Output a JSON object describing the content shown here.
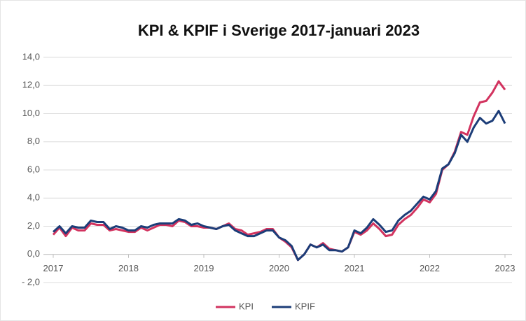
{
  "chart_data": {
    "type": "line",
    "title": "KPI & KPIF i Sverige 2017-januari 2023",
    "categories": [
      "2017",
      null,
      null,
      null,
      null,
      null,
      null,
      null,
      null,
      null,
      null,
      null,
      "2018",
      null,
      null,
      null,
      null,
      null,
      null,
      null,
      null,
      null,
      null,
      null,
      "2019",
      null,
      null,
      null,
      null,
      null,
      null,
      null,
      null,
      null,
      null,
      null,
      "2020",
      null,
      null,
      null,
      null,
      null,
      null,
      null,
      null,
      null,
      null,
      null,
      "2021",
      null,
      null,
      null,
      null,
      null,
      null,
      null,
      null,
      null,
      null,
      null,
      "2022",
      null,
      null,
      null,
      null,
      null,
      null,
      null,
      null,
      null,
      null,
      null,
      "2023"
    ],
    "series": [
      {
        "name": "KPI",
        "color": "#d2335f",
        "values": [
          1.4,
          1.9,
          1.3,
          1.9,
          1.7,
          1.7,
          2.2,
          2.1,
          2.1,
          1.7,
          1.8,
          1.7,
          1.6,
          1.6,
          1.9,
          1.7,
          1.9,
          2.1,
          2.1,
          2.0,
          2.4,
          2.3,
          2.0,
          2.0,
          1.9,
          1.9,
          1.8,
          2.0,
          2.2,
          1.8,
          1.7,
          1.4,
          1.5,
          1.6,
          1.8,
          1.8,
          1.2,
          0.9,
          0.5,
          -0.4,
          0.0,
          0.7,
          0.5,
          0.8,
          0.4,
          0.3,
          0.2,
          0.5,
          1.6,
          1.4,
          1.7,
          2.2,
          1.8,
          1.3,
          1.4,
          2.1,
          2.5,
          2.8,
          3.3,
          3.9,
          3.7,
          4.3,
          6.0,
          6.4,
          7.3,
          8.7,
          8.5,
          9.8,
          10.8,
          10.9,
          11.5,
          12.3,
          11.7
        ]
      },
      {
        "name": "KPIF",
        "color": "#1c3d78",
        "values": [
          1.6,
          2.0,
          1.5,
          2.0,
          1.9,
          1.9,
          2.4,
          2.3,
          2.3,
          1.8,
          2.0,
          1.9,
          1.7,
          1.7,
          2.0,
          1.9,
          2.1,
          2.2,
          2.2,
          2.2,
          2.5,
          2.4,
          2.1,
          2.2,
          2.0,
          1.9,
          1.8,
          2.0,
          2.1,
          1.7,
          1.5,
          1.3,
          1.3,
          1.5,
          1.7,
          1.7,
          1.2,
          1.0,
          0.6,
          -0.4,
          0.0,
          0.7,
          0.5,
          0.7,
          0.3,
          0.3,
          0.2,
          0.5,
          1.7,
          1.5,
          1.9,
          2.5,
          2.1,
          1.6,
          1.7,
          2.4,
          2.8,
          3.1,
          3.6,
          4.1,
          3.9,
          4.5,
          6.1,
          6.4,
          7.2,
          8.5,
          8.0,
          9.0,
          9.7,
          9.3,
          9.5,
          10.2,
          9.3
        ]
      }
    ],
    "ylim": [
      -2,
      14
    ],
    "yticks": [
      {
        "value": -2,
        "label": "- 2,0"
      },
      {
        "value": 0,
        "label": "0,0"
      },
      {
        "value": 2,
        "label": "2,0"
      },
      {
        "value": 4,
        "label": "4,0"
      },
      {
        "value": 6,
        "label": "6,0"
      },
      {
        "value": 8,
        "label": "8,0"
      },
      {
        "value": 10,
        "label": "10,0"
      },
      {
        "value": 12,
        "label": "12,0"
      },
      {
        "value": 14,
        "label": "14,0"
      }
    ],
    "grid": true,
    "legend": "bottom"
  }
}
